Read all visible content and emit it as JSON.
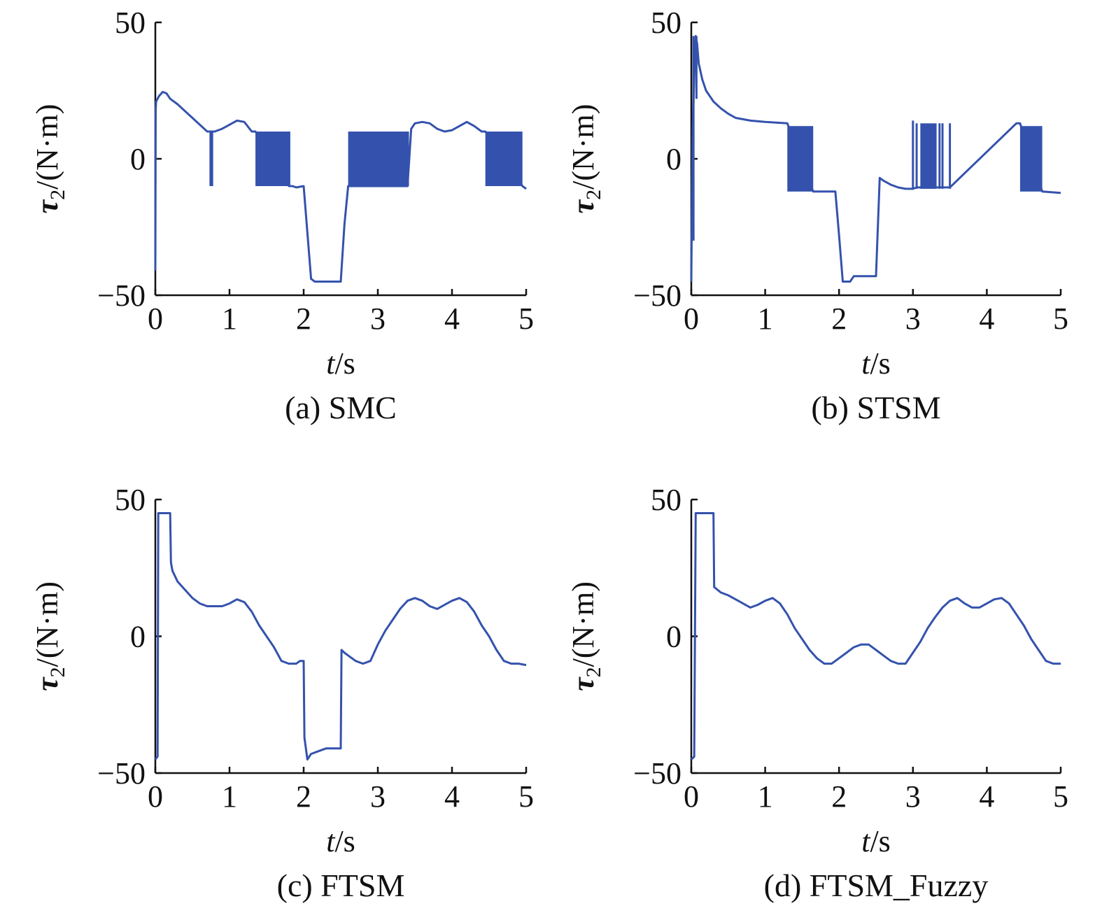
{
  "chart_data": [
    {
      "type": "line",
      "caption": "(a) SMC",
      "xlabel": "t/s",
      "ylabel": "τ2/(N·m)",
      "xlim": [
        0,
        5
      ],
      "ylim": [
        -50,
        50
      ],
      "xticks": [
        "0",
        "1",
        "2",
        "3",
        "4",
        "5"
      ],
      "yticks": [
        "50",
        "0",
        "−50"
      ],
      "color": "#3452ad",
      "series": [
        {
          "x": [
            0,
            0.005,
            0.01,
            0.05,
            0.1,
            0.15,
            0.2,
            0.3,
            0.4,
            0.5,
            0.6,
            0.7,
            0.75,
            0.8,
            0.9,
            1.0,
            1.1,
            1.2,
            1.3,
            1.35,
            1.8,
            1.85,
            1.9,
            2.0,
            2.05,
            2.1,
            2.15,
            2.2,
            2.3,
            2.4,
            2.5,
            2.55,
            2.6,
            3.4,
            3.45,
            3.5,
            3.6,
            3.7,
            3.8,
            3.9,
            4.0,
            4.1,
            4.2,
            4.3,
            4.4,
            4.45,
            4.95,
            5.0
          ],
          "y": [
            -41,
            18,
            21,
            23,
            24.5,
            24,
            22,
            20,
            17.5,
            15,
            12.5,
            10,
            10,
            10,
            11,
            12.5,
            14,
            13.5,
            10,
            10,
            -10,
            -10,
            -10.5,
            -10,
            -27,
            -44,
            -45,
            -45,
            -45,
            -45,
            -45,
            -24,
            -10,
            -10,
            11,
            13,
            13.5,
            13,
            11,
            10,
            10.5,
            12,
            13.5,
            12,
            10,
            10,
            -10,
            -11
          ]
        }
      ],
      "chatter": [
        {
          "x0": 0.73,
          "x1": 0.78,
          "ymin": -10,
          "ymax": 10
        },
        {
          "x0": 1.35,
          "x1": 1.82,
          "ymin": -10,
          "ymax": 10
        },
        {
          "x0": 2.6,
          "x1": 3.42,
          "ymin": -10,
          "ymax": 10
        },
        {
          "x0": 4.45,
          "x1": 4.95,
          "ymin": -10,
          "ymax": 10
        }
      ]
    },
    {
      "type": "line",
      "caption": "(b) STSM",
      "xlabel": "t/s",
      "ylabel": "τ2/(N·m)",
      "xlim": [
        0,
        5
      ],
      "ylim": [
        -50,
        50
      ],
      "xticks": [
        "0",
        "1",
        "2",
        "3",
        "4",
        "5"
      ],
      "yticks": [
        "50",
        "0",
        "−50"
      ],
      "color": "#3452ad",
      "series": [
        {
          "x": [
            0,
            0.01,
            0.02,
            0.04,
            0.06,
            0.08,
            0.1,
            0.15,
            0.2,
            0.3,
            0.4,
            0.5,
            0.6,
            0.8,
            1.0,
            1.3,
            1.65,
            1.7,
            1.95,
            2.0,
            2.05,
            2.1,
            2.15,
            2.2,
            2.3,
            2.4,
            2.5,
            2.55,
            2.6,
            2.7,
            2.8,
            2.9,
            3.0,
            3.05,
            3.5,
            4.4,
            4.45,
            4.75,
            5.0
          ],
          "y": [
            -45,
            -10,
            12,
            30,
            45,
            42,
            35,
            29,
            25,
            21,
            18.5,
            16.5,
            15,
            14,
            13.5,
            13,
            -12,
            -12,
            -12,
            -28,
            -45,
            -45,
            -45,
            -43,
            -43,
            -43,
            -43,
            -7,
            -8,
            -9.5,
            -10.5,
            -11,
            -11,
            -10.5,
            -10.5,
            13,
            13,
            -12,
            -12.5
          ]
        }
      ],
      "chatter": [
        {
          "x0": 1.3,
          "x1": 1.65,
          "ymin": -12,
          "ymax": 12
        },
        {
          "x0": 3.1,
          "x1": 3.32,
          "ymin": -11,
          "ymax": 13
        },
        {
          "x0": 4.45,
          "x1": 4.75,
          "ymin": -12,
          "ymax": 12
        }
      ],
      "spikes": [
        {
          "x": 0.03,
          "ymin": -30,
          "ymax": 45
        },
        {
          "x": 0.07,
          "ymin": 22,
          "ymax": 45
        },
        {
          "x": 3.0,
          "ymin": -11,
          "ymax": 14
        },
        {
          "x": 3.05,
          "ymin": -11,
          "ymax": 13
        },
        {
          "x": 3.36,
          "ymin": -11,
          "ymax": 13
        },
        {
          "x": 3.4,
          "ymin": -11,
          "ymax": 13
        },
        {
          "x": 3.5,
          "ymin": -11,
          "ymax": 13
        }
      ]
    },
    {
      "type": "line",
      "caption": "(c) FTSM",
      "xlabel": "t/s",
      "ylabel": "τ2/(N·m)",
      "xlim": [
        0,
        5
      ],
      "ylim": [
        -50,
        50
      ],
      "xticks": [
        "0",
        "1",
        "2",
        "3",
        "4",
        "5"
      ],
      "yticks": [
        "50",
        "0",
        "−50"
      ],
      "color": "#3452ad",
      "series": [
        {
          "x": [
            0,
            0.03,
            0.04,
            0.06,
            0.2,
            0.21,
            0.23,
            0.3,
            0.4,
            0.5,
            0.6,
            0.7,
            0.8,
            0.9,
            1.0,
            1.1,
            1.2,
            1.3,
            1.4,
            1.5,
            1.6,
            1.7,
            1.8,
            1.9,
            1.95,
            2.0,
            2.01,
            2.05,
            2.1,
            2.2,
            2.3,
            2.4,
            2.5,
            2.51,
            2.55,
            2.6,
            2.7,
            2.8,
            2.9,
            3.0,
            3.1,
            3.2,
            3.3,
            3.4,
            3.5,
            3.6,
            3.7,
            3.8,
            3.9,
            4.0,
            4.1,
            4.2,
            4.3,
            4.4,
            4.5,
            4.6,
            4.7,
            4.8,
            4.9,
            5.0
          ],
          "y": [
            -45,
            -44,
            45,
            45,
            45,
            27,
            24,
            20,
            17,
            14,
            12,
            11,
            11,
            11,
            12,
            13.5,
            12.5,
            9,
            4,
            0,
            -4,
            -9,
            -10,
            -10,
            -9,
            -9,
            -37,
            -45,
            -43,
            -42,
            -41,
            -41,
            -41,
            -5,
            -6,
            -7,
            -9,
            -10,
            -9,
            -3,
            2,
            6,
            10,
            13,
            14,
            13,
            11,
            10,
            11.5,
            13,
            14,
            12.5,
            9,
            4,
            0,
            -5,
            -9,
            -10,
            -10,
            -10.5
          ]
        }
      ]
    },
    {
      "type": "line",
      "caption": "(d) FTSM_Fuzzy",
      "xlabel": "t/s",
      "ylabel": "τ2/(N·m)",
      "xlim": [
        0,
        5
      ],
      "ylim": [
        -50,
        50
      ],
      "xticks": [
        "0",
        "1",
        "2",
        "3",
        "4",
        "5"
      ],
      "yticks": [
        "50",
        "0",
        "−50"
      ],
      "color": "#3452ad",
      "series": [
        {
          "x": [
            0,
            0.04,
            0.06,
            0.3,
            0.31,
            0.4,
            0.5,
            0.6,
            0.7,
            0.8,
            0.9,
            1.0,
            1.1,
            1.2,
            1.3,
            1.4,
            1.5,
            1.6,
            1.7,
            1.8,
            1.9,
            2.0,
            2.1,
            2.2,
            2.3,
            2.4,
            2.5,
            2.6,
            2.7,
            2.8,
            2.9,
            3.0,
            3.1,
            3.2,
            3.3,
            3.4,
            3.5,
            3.6,
            3.7,
            3.8,
            3.9,
            4.0,
            4.1,
            4.2,
            4.3,
            4.4,
            4.5,
            4.6,
            4.7,
            4.8,
            4.9,
            5.0
          ],
          "y": [
            -45,
            -44,
            45,
            45,
            18,
            16,
            15,
            13.5,
            12,
            10.5,
            11.5,
            13,
            14,
            12,
            8,
            3,
            -1,
            -5,
            -8,
            -10,
            -10,
            -8,
            -6,
            -4,
            -3,
            -3,
            -5,
            -7,
            -9,
            -10,
            -10,
            -6,
            -2,
            3,
            7,
            10.5,
            13,
            14,
            12,
            10.5,
            10.5,
            12,
            13.5,
            14,
            12,
            8,
            4,
            -1,
            -5,
            -9,
            -10,
            -10
          ]
        }
      ]
    }
  ]
}
